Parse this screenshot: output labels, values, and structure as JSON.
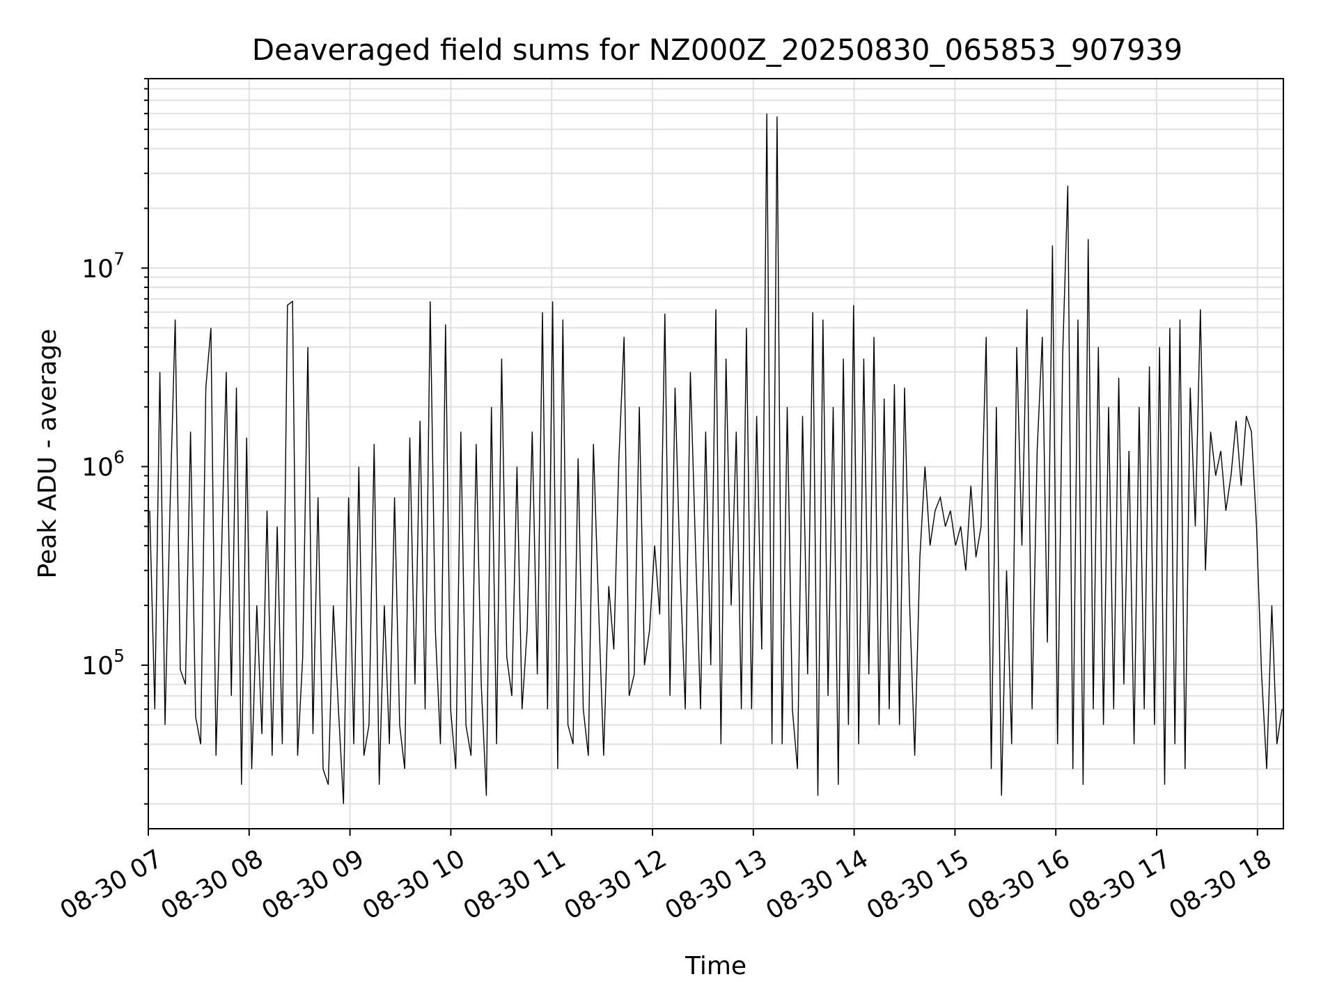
{
  "chart_data": {
    "type": "line",
    "title": "Deaveraged field sums for NZ000Z_20250830_065853_907939",
    "xlabel": "Time",
    "ylabel": "Peak ADU - average",
    "yscale": "log",
    "ylim": [
      15000,
      90000000
    ],
    "x_tick_labels": [
      "08-30 07",
      "08-30 08",
      "08-30 09",
      "08-30 10",
      "08-30 11",
      "08-30 12",
      "08-30 13",
      "08-30 14",
      "08-30 15",
      "08-30 16",
      "08-30 17",
      "08-30 18"
    ],
    "y_tick_labels": [
      {
        "base": "10",
        "exp": "5",
        "value": 100000
      },
      {
        "base": "10",
        "exp": "6",
        "value": 1000000
      },
      {
        "base": "10",
        "exp": "7",
        "value": 10000000
      }
    ],
    "grid": true,
    "line_color": "#000000",
    "grid_color": "#e0e0e0",
    "series": [
      {
        "x_start": "08-30 07",
        "x_end": "08-30 18",
        "values": [
          600000,
          60000,
          3000000,
          50000,
          650000,
          5500000,
          95000,
          80000,
          1500000,
          55000,
          40000,
          2500000,
          5000000,
          35000,
          300000,
          3000000,
          70000,
          2500000,
          25000,
          1400000,
          30000,
          200000,
          45000,
          600000,
          35000,
          500000,
          40000,
          6500000,
          6800000,
          35000,
          110000,
          4000000,
          45000,
          700000,
          30000,
          25000,
          200000,
          60000,
          20000,
          700000,
          40000,
          1000000,
          35000,
          50000,
          1300000,
          25000,
          200000,
          40000,
          700000,
          50000,
          30000,
          1400000,
          80000,
          1700000,
          60000,
          6800000,
          150000,
          40000,
          5200000,
          60000,
          30000,
          1500000,
          50000,
          35000,
          1300000,
          80000,
          22000,
          2000000,
          40000,
          3500000,
          110000,
          70000,
          1000000,
          60000,
          150000,
          1500000,
          90000,
          6000000,
          60000,
          6800000,
          30000,
          5500000,
          50000,
          40000,
          1100000,
          60000,
          35000,
          1300000,
          200000,
          35000,
          250000,
          120000,
          1100000,
          4500000,
          70000,
          90000,
          2000000,
          100000,
          150000,
          400000,
          180000,
          5900000,
          70000,
          2500000,
          300000,
          60000,
          3000000,
          400000,
          60000,
          1500000,
          100000,
          6200000,
          40000,
          3500000,
          200000,
          1500000,
          60000,
          5000000,
          60000,
          1800000,
          120000,
          60000000,
          40000,
          58000000,
          40000,
          2000000,
          60000,
          30000,
          1800000,
          90000,
          6000000,
          22000,
          5500000,
          70000,
          2000000,
          25000,
          3500000,
          50000,
          6500000,
          40000,
          3500000,
          90000,
          4500000,
          50000,
          2200000,
          60000,
          2600000,
          50000,
          2500000,
          200000,
          35000,
          350000,
          1000000,
          400000,
          600000,
          700000,
          500000,
          600000,
          400000,
          500000,
          300000,
          800000,
          350000,
          500000,
          4500000,
          30000,
          2000000,
          22000,
          300000,
          40000,
          4000000,
          400000,
          6200000,
          60000,
          1200000,
          4500000,
          130000,
          13000000,
          40000,
          3700000,
          26000000,
          30000,
          5500000,
          25000,
          14000000,
          60000,
          4000000,
          50000,
          2000000,
          60000,
          2800000,
          80000,
          1200000,
          40000,
          2000000,
          60000,
          3200000,
          50000,
          4000000,
          25000,
          5000000,
          40000,
          5500000,
          30000,
          2500000,
          500000,
          6200000,
          300000,
          1500000,
          900000,
          1200000,
          600000,
          900000,
          1700000,
          800000,
          1800000,
          1500000,
          500000,
          90000,
          30000,
          200000,
          40000,
          60000
        ]
      }
    ]
  }
}
